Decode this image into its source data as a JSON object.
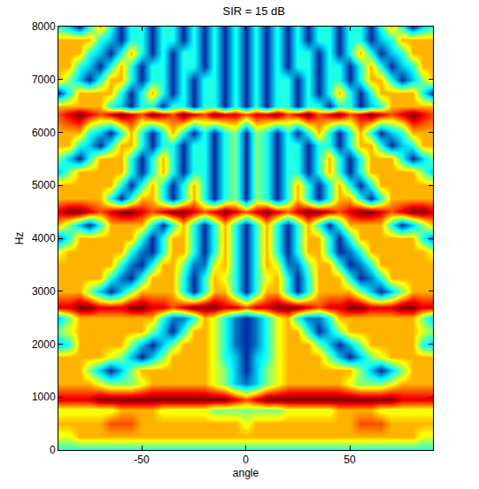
{
  "chart_data": {
    "type": "heatmap",
    "title": "SIR = 15 dB",
    "x_label": "angle",
    "y_label": "Hz",
    "xlim": [
      -90,
      90
    ],
    "xticks": [
      -50,
      0,
      50
    ],
    "ylim": [
      0,
      8000
    ],
    "yticks": [
      0,
      1000,
      2000,
      3000,
      4000,
      5000,
      6000,
      7000,
      8000
    ],
    "zlim": [
      0,
      10
    ],
    "color": "jet",
    "x": [
      -90,
      -85,
      -80,
      -75,
      -70,
      -65,
      -60,
      -55,
      -50,
      -45,
      -40,
      -35,
      -30,
      -25,
      -20,
      -15,
      -10,
      -5,
      0,
      5,
      10,
      15,
      20,
      25,
      30,
      35,
      40,
      45,
      50,
      55,
      60,
      65,
      70,
      75,
      80,
      85,
      90
    ],
    "y": [
      0,
      250,
      500,
      750,
      950,
      1250,
      1500,
      1750,
      2000,
      2250,
      2500,
      2700,
      3000,
      3250,
      3500,
      3750,
      4000,
      4250,
      4500,
      4750,
      5000,
      5250,
      5500,
      5750,
      6000,
      6350,
      6500,
      6750,
      7000,
      7250,
      7500,
      7750,
      8000
    ],
    "z": [
      [
        4,
        4,
        4,
        4,
        4,
        4,
        4,
        4,
        4,
        4,
        4,
        4,
        4,
        4,
        4,
        4,
        4,
        4,
        4,
        4,
        4,
        4,
        4,
        4,
        4,
        4,
        4,
        4,
        4,
        4,
        4,
        4,
        4,
        4,
        4,
        4,
        4
      ],
      [
        6,
        6,
        7,
        7,
        7,
        7,
        7,
        7,
        7,
        7,
        7,
        7,
        7,
        7,
        7,
        7,
        7,
        7,
        7,
        7,
        7,
        7,
        7,
        7,
        7,
        7,
        7,
        7,
        7,
        7,
        7,
        7,
        7,
        7,
        7,
        6,
        6
      ],
      [
        7,
        7,
        7,
        7,
        7,
        8,
        8,
        8,
        7,
        7,
        7,
        7,
        7,
        7,
        7,
        7,
        7,
        7,
        6,
        7,
        7,
        7,
        7,
        7,
        7,
        7,
        7,
        7,
        7,
        8,
        8,
        8,
        7,
        7,
        7,
        7,
        7
      ],
      [
        6,
        6,
        6,
        6,
        6,
        6,
        7,
        7,
        7,
        7,
        6,
        6,
        6,
        6,
        6,
        5,
        5,
        5,
        5,
        5,
        5,
        5,
        6,
        6,
        6,
        6,
        6,
        7,
        7,
        7,
        7,
        6,
        6,
        6,
        6,
        6,
        6
      ],
      [
        9,
        9,
        9,
        9,
        10,
        10,
        10,
        10,
        10,
        10,
        10,
        10,
        10,
        10,
        10,
        10,
        10,
        9,
        8,
        9,
        10,
        10,
        10,
        10,
        10,
        10,
        10,
        10,
        10,
        10,
        10,
        10,
        10,
        9,
        9,
        9,
        9
      ],
      [
        7,
        7,
        7,
        7,
        6,
        5,
        5,
        5,
        6,
        7,
        7,
        7,
        7,
        7,
        7,
        6,
        5,
        3,
        2,
        3,
        5,
        6,
        7,
        7,
        7,
        7,
        7,
        7,
        6,
        5,
        5,
        5,
        6,
        7,
        7,
        7,
        7
      ],
      [
        7,
        7,
        7,
        5,
        3,
        1,
        3,
        5,
        7,
        7,
        7,
        7,
        7,
        7,
        7,
        6,
        5,
        3,
        1,
        3,
        5,
        6,
        7,
        7,
        7,
        7,
        7,
        7,
        7,
        5,
        3,
        1,
        3,
        5,
        7,
        7,
        7
      ],
      [
        7,
        7,
        7,
        7,
        7,
        6,
        5,
        3,
        1,
        3,
        5,
        7,
        7,
        7,
        7,
        6,
        4,
        3,
        1,
        3,
        4,
        6,
        7,
        7,
        7,
        7,
        5,
        3,
        1,
        3,
        5,
        6,
        7,
        7,
        7,
        7,
        7
      ],
      [
        3,
        4,
        7,
        7,
        7,
        7,
        7,
        5,
        3,
        1,
        3,
        5,
        7,
        7,
        7,
        6,
        4,
        2,
        1,
        2,
        4,
        6,
        7,
        7,
        7,
        5,
        3,
        1,
        3,
        5,
        7,
        7,
        7,
        7,
        7,
        4,
        3
      ],
      [
        5,
        6,
        7,
        7,
        7,
        7,
        7,
        7,
        7,
        5,
        3,
        1,
        4,
        7,
        7,
        6,
        4,
        2,
        1,
        2,
        4,
        6,
        7,
        7,
        4,
        1,
        3,
        5,
        7,
        7,
        7,
        7,
        7,
        7,
        7,
        6,
        5
      ],
      [
        3,
        5,
        7,
        7,
        7,
        7,
        7,
        7,
        7,
        7,
        4,
        2,
        2,
        4,
        7,
        6,
        4,
        2,
        1,
        2,
        4,
        6,
        7,
        4,
        2,
        2,
        4,
        7,
        7,
        7,
        7,
        7,
        7,
        7,
        7,
        5,
        3
      ],
      [
        9,
        9,
        10,
        10,
        9,
        9,
        9,
        10,
        10,
        9,
        9,
        8,
        9,
        10,
        10,
        10,
        9,
        9,
        8,
        9,
        9,
        10,
        10,
        10,
        9,
        8,
        9,
        9,
        10,
        10,
        9,
        9,
        9,
        10,
        10,
        9,
        9
      ],
      [
        7,
        7,
        7,
        5,
        3,
        1,
        3,
        5,
        7,
        7,
        7,
        7,
        4,
        1,
        4,
        7,
        7,
        4,
        1,
        4,
        7,
        7,
        4,
        1,
        4,
        7,
        7,
        7,
        7,
        5,
        3,
        1,
        3,
        5,
        7,
        7,
        7
      ],
      [
        7,
        7,
        7,
        7,
        7,
        4,
        2,
        1,
        4,
        7,
        7,
        7,
        4,
        1,
        4,
        7,
        6,
        4,
        1,
        4,
        6,
        7,
        4,
        1,
        4,
        7,
        7,
        7,
        4,
        1,
        2,
        4,
        7,
        7,
        7,
        7,
        7
      ],
      [
        7,
        7,
        7,
        7,
        7,
        7,
        4,
        2,
        1,
        4,
        7,
        7,
        5,
        2,
        2,
        6,
        7,
        4,
        1,
        4,
        7,
        6,
        2,
        2,
        5,
        7,
        7,
        4,
        1,
        2,
        4,
        7,
        7,
        7,
        7,
        7,
        7
      ],
      [
        6,
        7,
        7,
        7,
        7,
        7,
        7,
        4,
        2,
        1,
        4,
        7,
        7,
        4,
        1,
        4,
        7,
        4,
        1,
        4,
        7,
        4,
        1,
        4,
        7,
        7,
        4,
        1,
        2,
        4,
        7,
        7,
        7,
        7,
        7,
        7,
        6
      ],
      [
        2,
        4,
        7,
        7,
        7,
        7,
        7,
        7,
        4,
        1,
        4,
        7,
        7,
        4,
        1,
        4,
        7,
        4,
        1,
        4,
        7,
        4,
        1,
        4,
        7,
        7,
        4,
        1,
        4,
        7,
        7,
        7,
        7,
        7,
        7,
        4,
        2
      ],
      [
        7,
        5,
        3,
        1,
        4,
        7,
        7,
        7,
        7,
        4,
        1,
        4,
        7,
        4,
        1,
        4,
        7,
        4,
        1,
        4,
        7,
        4,
        1,
        4,
        7,
        4,
        1,
        4,
        7,
        7,
        7,
        7,
        4,
        1,
        3,
        5,
        7
      ],
      [
        9,
        10,
        10,
        9,
        8,
        9,
        10,
        10,
        9,
        8,
        9,
        10,
        10,
        9,
        8,
        9,
        10,
        9,
        8,
        9,
        10,
        9,
        8,
        9,
        10,
        10,
        9,
        8,
        9,
        10,
        10,
        9,
        8,
        9,
        10,
        10,
        9
      ],
      [
        7,
        7,
        7,
        7,
        7,
        4,
        1,
        4,
        7,
        7,
        4,
        1,
        4,
        7,
        4,
        1,
        4,
        5,
        1,
        5,
        4,
        1,
        4,
        7,
        4,
        1,
        4,
        7,
        7,
        4,
        1,
        4,
        7,
        7,
        7,
        7,
        7
      ],
      [
        7,
        7,
        7,
        7,
        7,
        7,
        4,
        1,
        4,
        7,
        4,
        1,
        4,
        7,
        4,
        1,
        4,
        5,
        1,
        5,
        4,
        1,
        4,
        7,
        4,
        1,
        4,
        7,
        4,
        1,
        4,
        7,
        7,
        7,
        7,
        7,
        7
      ],
      [
        3,
        5,
        7,
        7,
        7,
        7,
        7,
        4,
        1,
        4,
        7,
        4,
        1,
        4,
        4,
        1,
        4,
        5,
        1,
        5,
        4,
        1,
        4,
        4,
        1,
        4,
        7,
        4,
        1,
        4,
        7,
        7,
        7,
        7,
        7,
        5,
        3
      ],
      [
        5,
        3,
        1,
        4,
        7,
        7,
        7,
        4,
        1,
        4,
        7,
        4,
        1,
        4,
        4,
        1,
        4,
        5,
        1,
        5,
        4,
        1,
        4,
        4,
        1,
        4,
        7,
        4,
        1,
        4,
        7,
        7,
        7,
        4,
        1,
        3,
        5
      ],
      [
        7,
        7,
        4,
        3,
        1,
        4,
        7,
        7,
        4,
        1,
        4,
        4,
        1,
        4,
        4,
        1,
        4,
        5,
        1,
        5,
        4,
        1,
        4,
        4,
        1,
        4,
        4,
        1,
        4,
        7,
        7,
        4,
        1,
        3,
        4,
        7,
        7
      ],
      [
        7,
        7,
        7,
        4,
        3,
        1,
        4,
        7,
        4,
        1,
        4,
        7,
        4,
        1,
        4,
        1,
        4,
        5,
        1,
        5,
        4,
        1,
        4,
        1,
        4,
        7,
        4,
        1,
        4,
        7,
        4,
        1,
        3,
        4,
        7,
        7,
        7
      ],
      [
        8,
        9,
        10,
        9,
        8,
        9,
        10,
        9,
        8,
        10,
        9,
        8,
        10,
        9,
        8,
        10,
        9,
        9,
        8,
        9,
        9,
        10,
        8,
        9,
        10,
        8,
        9,
        10,
        8,
        9,
        10,
        9,
        8,
        9,
        10,
        9,
        8
      ],
      [
        7,
        7,
        7,
        7,
        7,
        4,
        3,
        1,
        4,
        4,
        1,
        4,
        4,
        1,
        4,
        4,
        1,
        4,
        1,
        4,
        1,
        4,
        4,
        1,
        4,
        4,
        1,
        4,
        4,
        1,
        3,
        4,
        7,
        7,
        7,
        7,
        7
      ],
      [
        1,
        4,
        7,
        7,
        7,
        7,
        4,
        1,
        4,
        7,
        4,
        1,
        4,
        1,
        4,
        4,
        1,
        4,
        1,
        4,
        1,
        4,
        4,
        1,
        4,
        1,
        4,
        7,
        4,
        1,
        4,
        7,
        7,
        7,
        7,
        4,
        1
      ],
      [
        7,
        5,
        3,
        1,
        4,
        7,
        7,
        4,
        1,
        4,
        4,
        1,
        4,
        1,
        4,
        4,
        1,
        4,
        1,
        4,
        1,
        4,
        4,
        1,
        4,
        1,
        4,
        4,
        1,
        4,
        7,
        7,
        4,
        1,
        3,
        5,
        7
      ],
      [
        7,
        7,
        4,
        3,
        1,
        4,
        7,
        4,
        1,
        4,
        4,
        1,
        4,
        4,
        1,
        4,
        1,
        4,
        1,
        4,
        1,
        4,
        1,
        4,
        4,
        1,
        4,
        4,
        1,
        4,
        7,
        4,
        1,
        3,
        4,
        7,
        7
      ],
      [
        7,
        7,
        7,
        4,
        3,
        1,
        4,
        7,
        4,
        1,
        4,
        1,
        4,
        4,
        1,
        4,
        1,
        4,
        1,
        4,
        1,
        4,
        1,
        4,
        4,
        1,
        4,
        1,
        4,
        7,
        4,
        1,
        3,
        4,
        7,
        7,
        7
      ],
      [
        7,
        7,
        7,
        7,
        4,
        3,
        1,
        4,
        4,
        1,
        4,
        4,
        1,
        4,
        1,
        4,
        1,
        4,
        1,
        4,
        1,
        4,
        1,
        4,
        1,
        4,
        4,
        1,
        4,
        4,
        1,
        3,
        4,
        7,
        7,
        7,
        7
      ],
      [
        4,
        3,
        1,
        4,
        7,
        4,
        1,
        4,
        4,
        1,
        4,
        4,
        1,
        4,
        1,
        4,
        1,
        4,
        1,
        4,
        1,
        4,
        1,
        4,
        1,
        4,
        4,
        1,
        4,
        4,
        1,
        4,
        7,
        4,
        1,
        3,
        4
      ]
    ]
  }
}
